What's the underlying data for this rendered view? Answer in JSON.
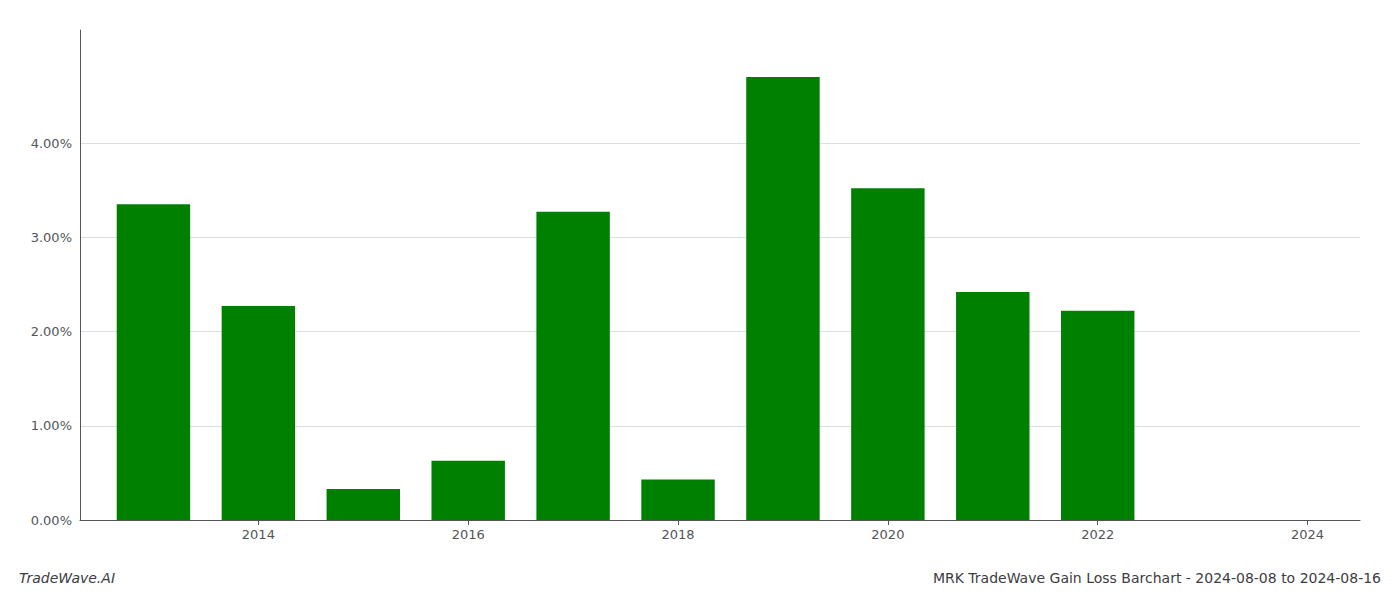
{
  "chart_data": {
    "type": "bar",
    "title": "MRK TradeWave Gain Loss Barchart - 2024-08-08 to 2024-08-16",
    "annotations": [
      "TradeWave.AI"
    ],
    "x": [
      2013,
      2014,
      2015,
      2016,
      2017,
      2018,
      2019,
      2020,
      2021,
      2022,
      2023
    ],
    "values": [
      3.35,
      2.27,
      0.33,
      0.63,
      3.27,
      0.43,
      4.7,
      3.52,
      2.42,
      2.22,
      0.0
    ],
    "color": "#008000",
    "xlim": [
      2012.3,
      2024.5
    ],
    "xticks": [
      2014,
      2016,
      2018,
      2020,
      2022,
      2024
    ],
    "ylim": [
      0,
      5.2
    ],
    "yticks": [
      {
        "value": 0,
        "label": "0.00%"
      },
      {
        "value": 1,
        "label": "1.00%"
      },
      {
        "value": 2,
        "label": "2.00%"
      },
      {
        "value": 3,
        "label": "3.00%"
      },
      {
        "value": 4,
        "label": "4.00%"
      }
    ],
    "grid": true
  }
}
